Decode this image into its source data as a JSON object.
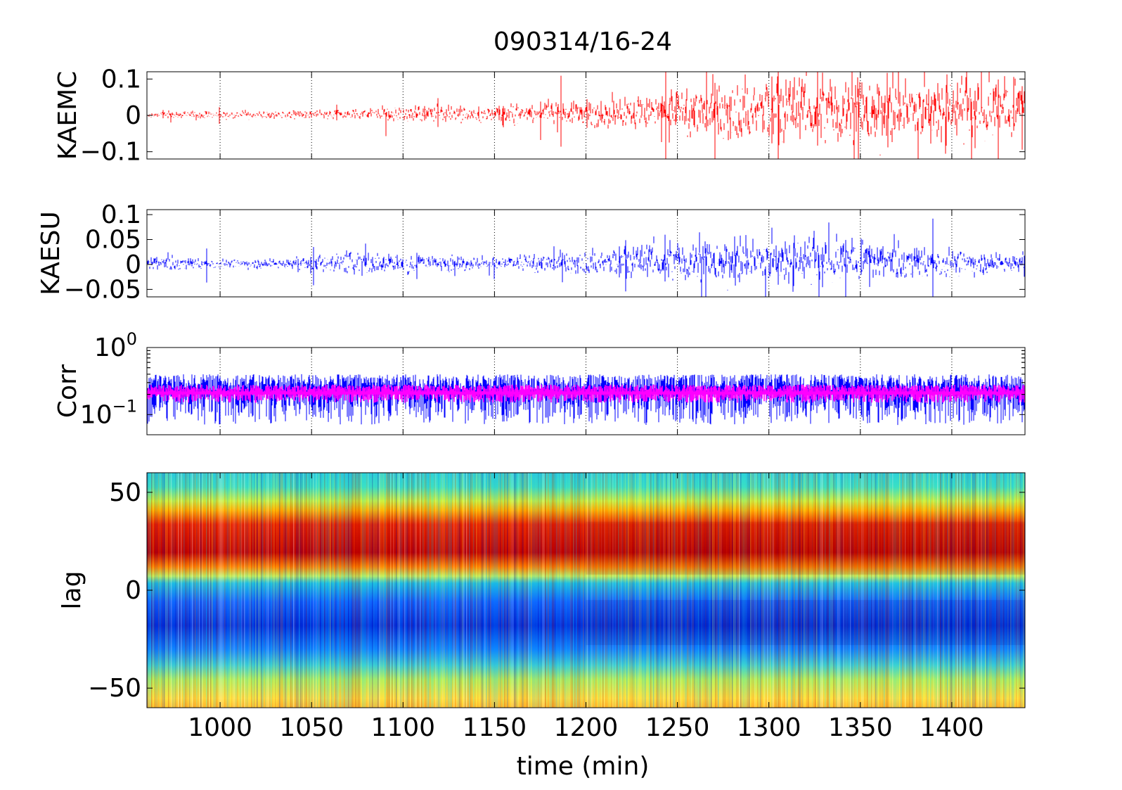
{
  "title": "090314/16-24",
  "xaxis": {
    "label": "time (min)",
    "range": [
      960,
      1440
    ],
    "ticks": [
      1000,
      1050,
      1100,
      1150,
      1200,
      1250,
      1300,
      1350,
      1400
    ]
  },
  "chart_data": [
    {
      "type": "line",
      "ylabel": "KAEMC",
      "xlim": [
        960,
        1440
      ],
      "ylim": [
        -0.12,
        0.12
      ],
      "yticks": [
        0.1,
        0,
        -0.1
      ],
      "ytick_labels": [
        "0.1",
        "0",
        "−0.1"
      ],
      "grid": "vertical-dotted",
      "series": [
        {
          "color": "#ff0000",
          "x": [
            960,
            1000,
            1050,
            1100,
            1150,
            1200,
            1250,
            1270,
            1300,
            1350,
            1400,
            1440
          ],
          "envelope": [
            0.005,
            0.006,
            0.008,
            0.012,
            0.015,
            0.02,
            0.035,
            0.05,
            0.055,
            0.06,
            0.055,
            0.05
          ]
        }
      ]
    },
    {
      "type": "line",
      "ylabel": "KAESU",
      "xlim": [
        960,
        1440
      ],
      "ylim": [
        -0.065,
        0.11
      ],
      "yticks": [
        0.1,
        0.05,
        0,
        -0.05
      ],
      "ytick_labels": [
        "0.1",
        "0.05",
        "0",
        "−0.05"
      ],
      "grid": "vertical-dotted",
      "series": [
        {
          "color": "#0000ff",
          "x": [
            960,
            1000,
            1050,
            1080,
            1100,
            1150,
            1200,
            1250,
            1300,
            1350,
            1400,
            1440
          ],
          "envelope": [
            0.01,
            0.005,
            0.008,
            0.015,
            0.012,
            0.008,
            0.015,
            0.025,
            0.03,
            0.025,
            0.015,
            0.012
          ]
        }
      ]
    },
    {
      "type": "line",
      "ylabel": "Corr",
      "yscale": "log",
      "xlim": [
        960,
        1440
      ],
      "ylim": [
        0.05,
        1
      ],
      "yticks": [
        1,
        0.1
      ],
      "ytick_labels": [
        {
          "base": "10",
          "exp": "0"
        },
        {
          "base": "10",
          "exp": "−1"
        }
      ],
      "grid": "vertical-dotted",
      "series": [
        {
          "color": "#0000ff",
          "x": [
            960,
            1440
          ],
          "center": [
            0.22,
            0.22
          ],
          "spread_low": 0.07,
          "spread_high": 0.4
        },
        {
          "color": "#ff00ff",
          "x": [
            960,
            1440
          ],
          "center": [
            0.21,
            0.21
          ],
          "spread_low": 0.15,
          "spread_high": 0.28
        }
      ]
    },
    {
      "type": "heatmap",
      "ylabel": "lag",
      "xlim": [
        960,
        1440
      ],
      "ylim": [
        -60,
        60
      ],
      "yticks": [
        50,
        0,
        -50
      ],
      "ytick_labels": [
        "50",
        "0",
        "−50"
      ],
      "colormap": "jet",
      "bands": [
        {
          "lag_range": [
            35,
            60
          ],
          "level": "cyan-green"
        },
        {
          "lag_range": [
            5,
            35
          ],
          "level": "red"
        },
        {
          "lag_range": [
            -30,
            5
          ],
          "level": "blue"
        },
        {
          "lag_range": [
            -60,
            -30
          ],
          "level": "yellow-green"
        }
      ]
    }
  ]
}
